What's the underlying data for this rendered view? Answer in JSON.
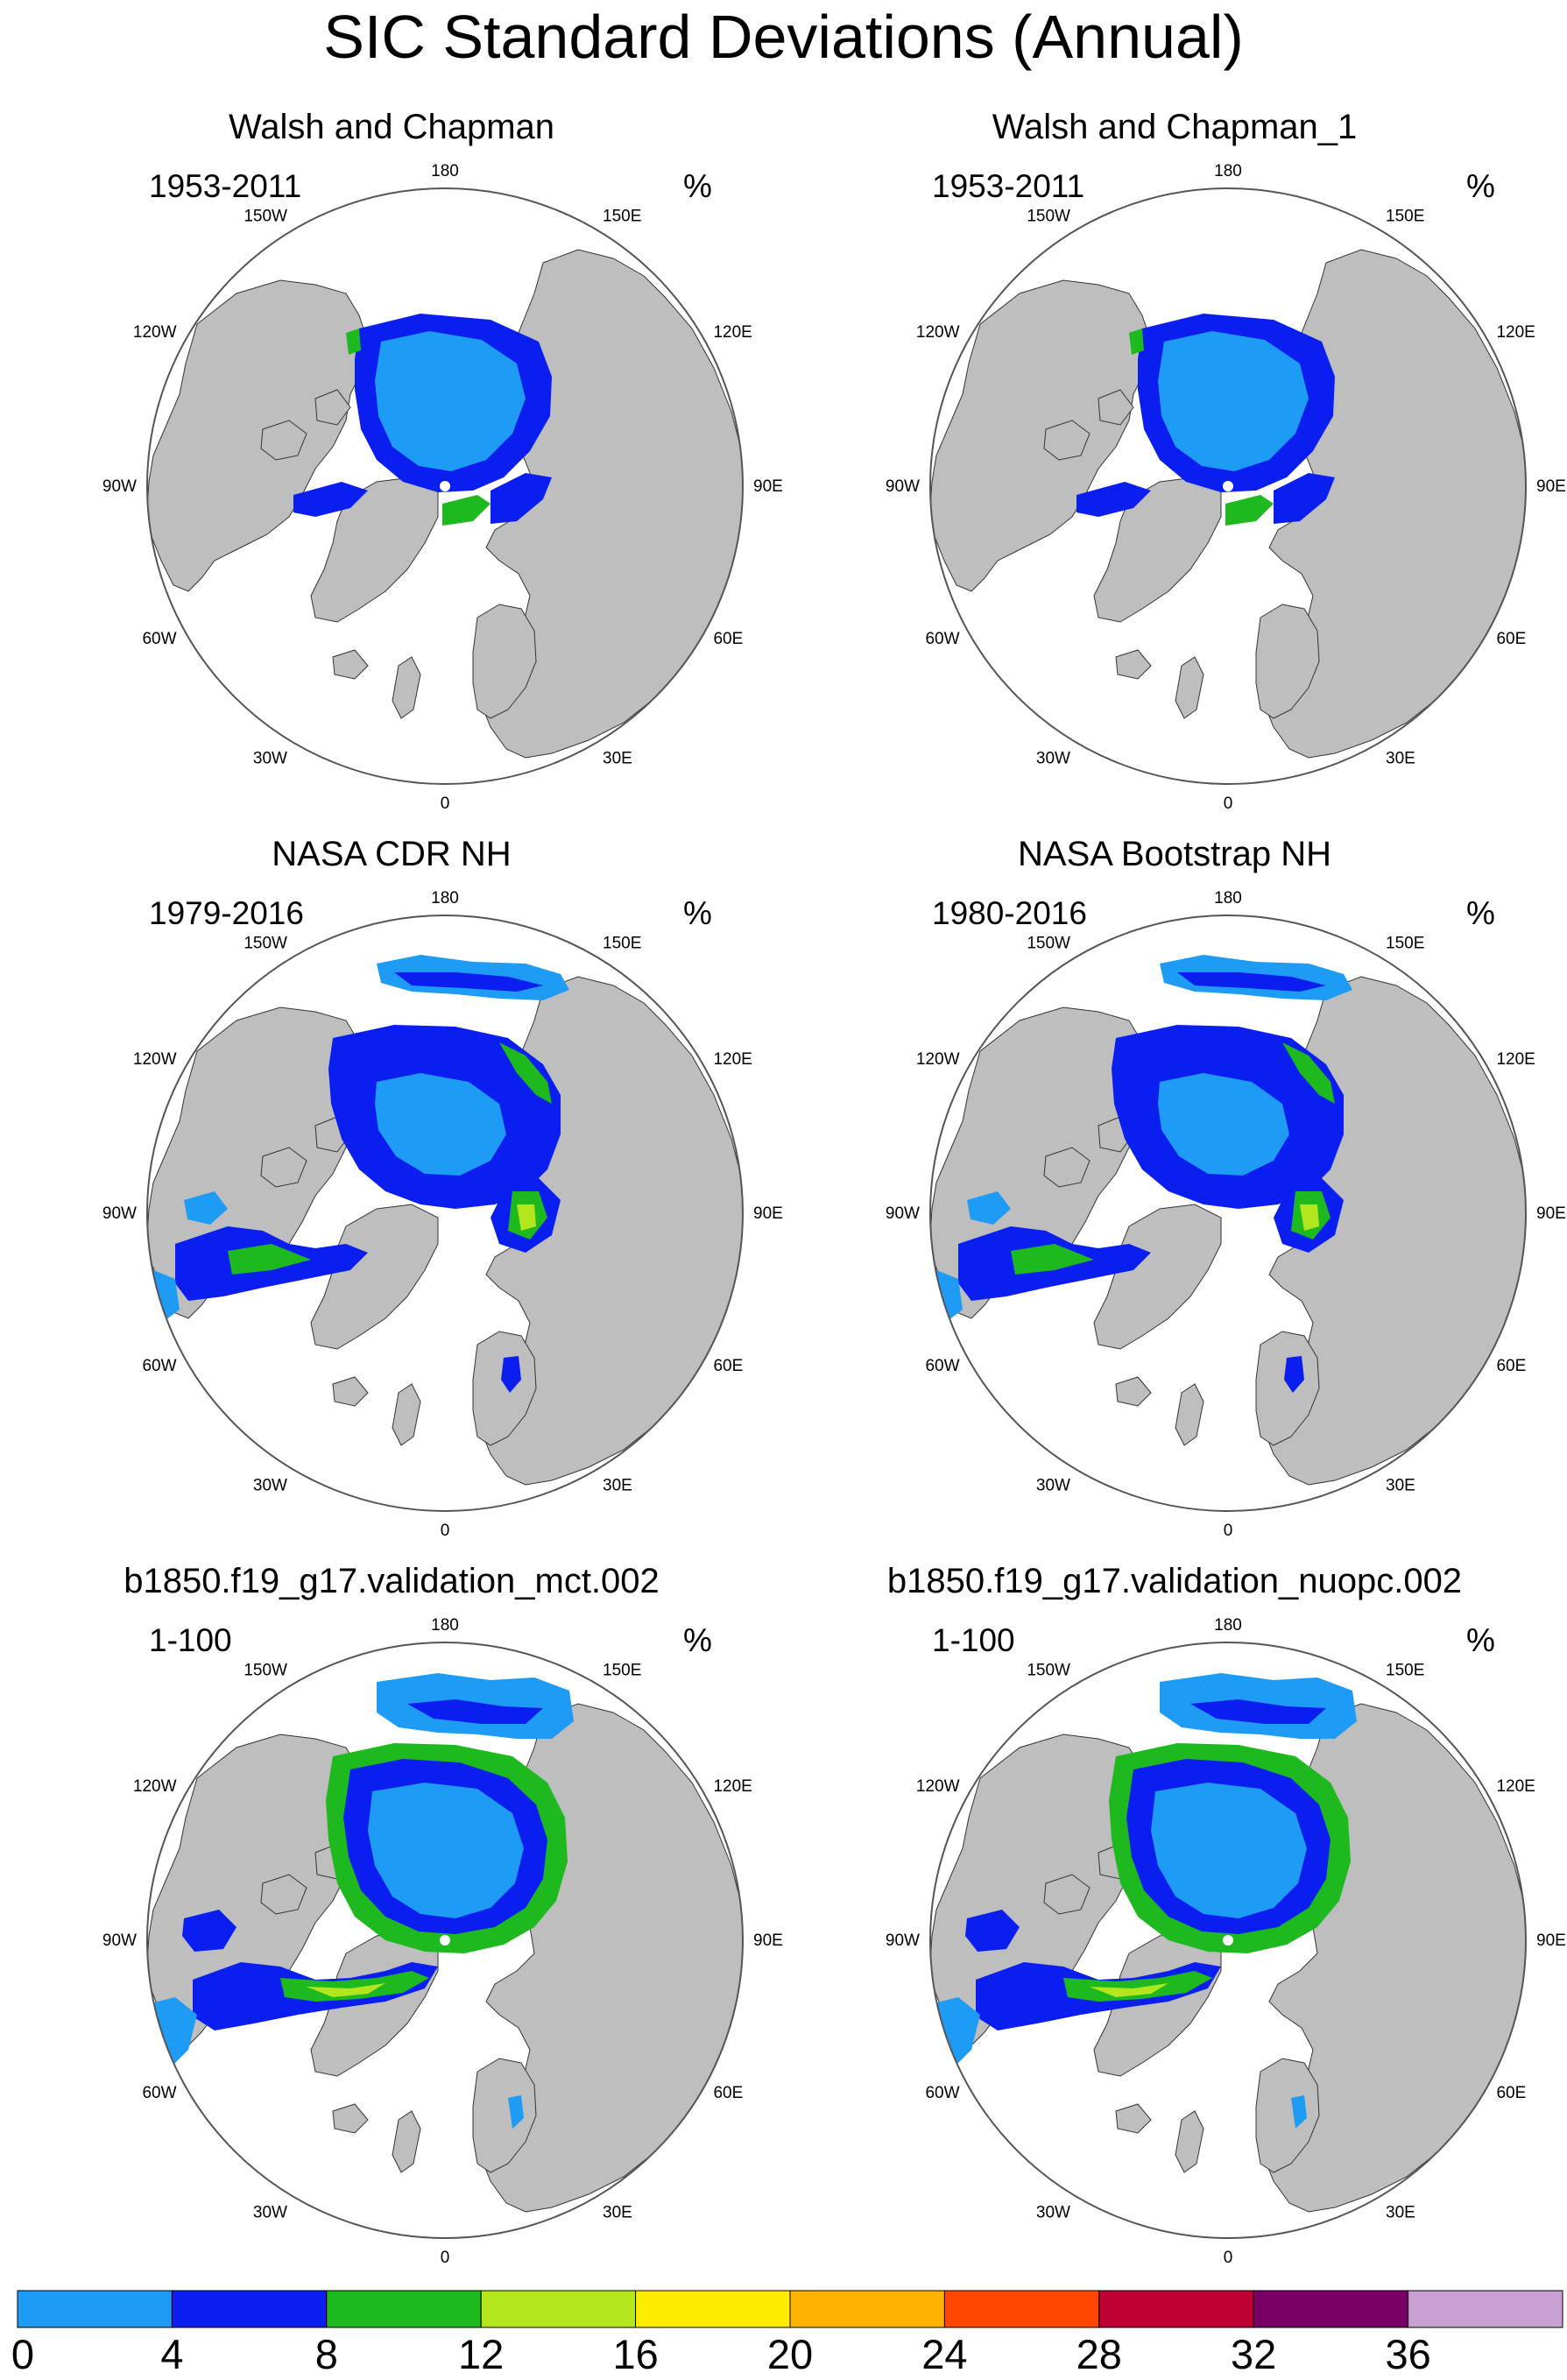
{
  "title": "SIC Standard Deviations (Annual)",
  "panels": [
    {
      "title": "Walsh and Chapman",
      "period": "1953-2011",
      "unit": "%",
      "pattern": "wc"
    },
    {
      "title": "Walsh and Chapman_1",
      "period": "1953-2011",
      "unit": "%",
      "pattern": "wc"
    },
    {
      "title": "NASA CDR NH",
      "period": "1979-2016",
      "unit": "%",
      "pattern": "obs"
    },
    {
      "title": "NASA Bootstrap NH",
      "period": "1980-2016",
      "unit": "%",
      "pattern": "obs"
    },
    {
      "title": "b1850.f19_g17.validation_mct.002",
      "period": "1-100",
      "unit": "%",
      "pattern": "model"
    },
    {
      "title": "b1850.f19_g17.validation_nuopc.002",
      "period": "1-100",
      "unit": "%",
      "pattern": "model"
    }
  ],
  "longitude_labels": {
    "top": "180",
    "upper_left": "150W",
    "upper_right": "150E",
    "left_upper": "120W",
    "right_upper": "120E",
    "left": "90W",
    "right": "90E",
    "left_lower": "60W",
    "right_lower": "60E",
    "lower_left": "30W",
    "lower_right": "30E",
    "bottom": "0"
  },
  "colorbar": {
    "labels": [
      "0",
      "4",
      "8",
      "12",
      "16",
      "20",
      "24",
      "28",
      "32",
      "36"
    ],
    "colors": [
      "#1e9bf5",
      "#0a1ef0",
      "#1eb91e",
      "#b4e61e",
      "#ffeb00",
      "#ffb400",
      "#ff4600",
      "#be0032",
      "#780064",
      "#c8a0d2"
    ]
  },
  "colors": {
    "land": "#bebebe",
    "ocean": "#ffffff",
    "outline": "#555555"
  }
}
